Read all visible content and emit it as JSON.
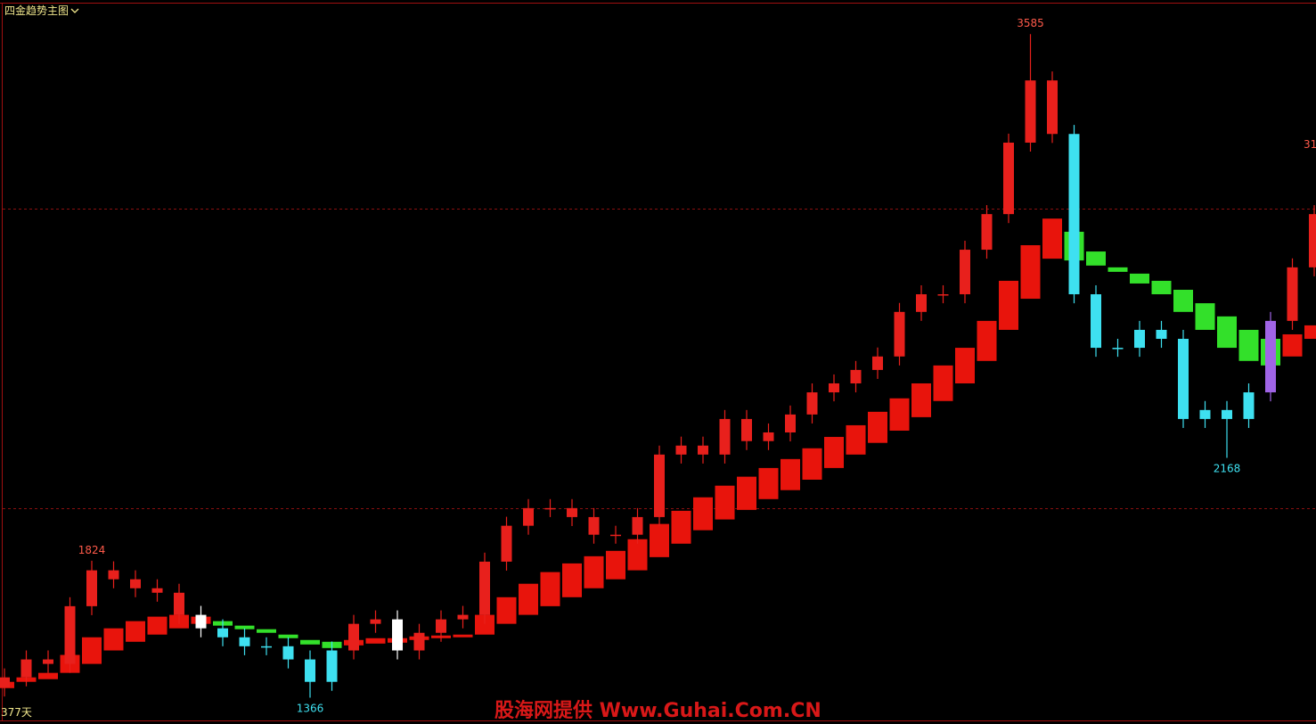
{
  "chart_data": {
    "type": "candlestick",
    "title": "四金趋势主图",
    "period_label": "377天",
    "edge_label": "31",
    "watermark": "股海网提供 Www.Guhai.Com.CN",
    "open": [
      1400,
      1434,
      1494,
      1479,
      1672,
      1792,
      1762,
      1732,
      1717,
      1643,
      1598,
      1568,
      1538,
      1538,
      1494,
      1419,
      1524,
      1613,
      1628,
      1524,
      1583,
      1628,
      1643,
      1821,
      1941,
      2000,
      2000,
      1970,
      1911,
      1911,
      1970,
      2179,
      2209,
      2179,
      2298,
      2224,
      2253,
      2313,
      2387,
      2417,
      2462,
      2507,
      2656,
      2715,
      2715,
      2864,
      2983,
      3222,
      3430,
      3251,
      2715,
      2536,
      2536,
      2596,
      2566,
      2298,
      2328,
      2298,
      2387,
      2626,
      2805
    ],
    "high": [
      1464,
      1524,
      1524,
      1702,
      1824,
      1822,
      1792,
      1762,
      1747,
      1673,
      1628,
      1598,
      1568,
      1568,
      1524,
      1554,
      1643,
      1658,
      1658,
      1613,
      1658,
      1673,
      1851,
      1971,
      2030,
      2030,
      2030,
      2000,
      1941,
      2000,
      2209,
      2239,
      2239,
      2328,
      2328,
      2283,
      2343,
      2417,
      2447,
      2492,
      2537,
      2686,
      2745,
      2745,
      2894,
      3013,
      3252,
      3585,
      3460,
      3281,
      2745,
      2566,
      2626,
      2626,
      2596,
      2358,
      2358,
      2417,
      2656,
      2835,
      3013
    ],
    "low": [
      1370,
      1404,
      1449,
      1449,
      1642,
      1732,
      1702,
      1687,
      1613,
      1568,
      1538,
      1508,
      1508,
      1464,
      1366,
      1389,
      1494,
      1583,
      1494,
      1494,
      1553,
      1598,
      1613,
      1791,
      1911,
      1970,
      1940,
      1881,
      1881,
      1881,
      1940,
      2149,
      2149,
      2149,
      2194,
      2194,
      2223,
      2283,
      2357,
      2387,
      2432,
      2477,
      2626,
      2685,
      2685,
      2834,
      2953,
      3192,
      3221,
      2685,
      2506,
      2506,
      2506,
      2536,
      2268,
      2268,
      2168,
      2268,
      2357,
      2596,
      2775
    ],
    "close": [
      1434,
      1494,
      1479,
      1672,
      1792,
      1762,
      1732,
      1717,
      1643,
      1598,
      1568,
      1538,
      1538,
      1494,
      1419,
      1524,
      1613,
      1628,
      1524,
      1583,
      1628,
      1643,
      1821,
      1941,
      2000,
      2000,
      1970,
      1911,
      1911,
      1970,
      2179,
      2209,
      2179,
      2298,
      2224,
      2253,
      2313,
      2387,
      2417,
      2462,
      2507,
      2656,
      2715,
      2715,
      2864,
      2983,
      3222,
      3430,
      3251,
      2715,
      2536,
      2536,
      2596,
      2566,
      2298,
      2328,
      2298,
      2387,
      2626,
      2805,
      2983
    ],
    "band_top": [
      1419,
      1434,
      1449,
      1509,
      1568,
      1598,
      1622,
      1637,
      1643,
      1637,
      1622,
      1607,
      1595,
      1577,
      1559,
      1553,
      1559,
      1565,
      1565,
      1571,
      1574,
      1577,
      1643,
      1702,
      1747,
      1786,
      1815,
      1839,
      1857,
      1896,
      1947,
      1991,
      2036,
      2075,
      2105,
      2134,
      2164,
      2200,
      2238,
      2277,
      2322,
      2367,
      2417,
      2477,
      2536,
      2626,
      2760,
      2879,
      2968,
      2924,
      2858,
      2805,
      2784,
      2760,
      2730,
      2685,
      2641,
      2596,
      2566,
      2581,
      2611
    ],
    "band_bottom": [
      1398,
      1419,
      1428,
      1449,
      1479,
      1524,
      1553,
      1577,
      1598,
      1613,
      1607,
      1595,
      1583,
      1565,
      1544,
      1532,
      1541,
      1547,
      1550,
      1559,
      1565,
      1568,
      1577,
      1613,
      1643,
      1672,
      1702,
      1732,
      1762,
      1792,
      1836,
      1881,
      1926,
      1962,
      1994,
      2030,
      2060,
      2095,
      2134,
      2179,
      2218,
      2259,
      2304,
      2358,
      2417,
      2492,
      2596,
      2700,
      2834,
      2828,
      2811,
      2790,
      2751,
      2715,
      2656,
      2596,
      2536,
      2492,
      2477,
      2507,
      2566
    ],
    "ylim": [
      1290,
      3690
    ],
    "yticks": [
      2000,
      3000
    ],
    "grid": true,
    "colors": {
      "up": "#e8201c",
      "below": "#ffffff",
      "weak_up": "#a064e6",
      "weak_below": "#3ee0f0",
      "band_rise": "#e8140c",
      "band_fall": "#33e02a",
      "high_label": "#ff5a4a",
      "low_label": "#3ee0f0"
    }
  }
}
